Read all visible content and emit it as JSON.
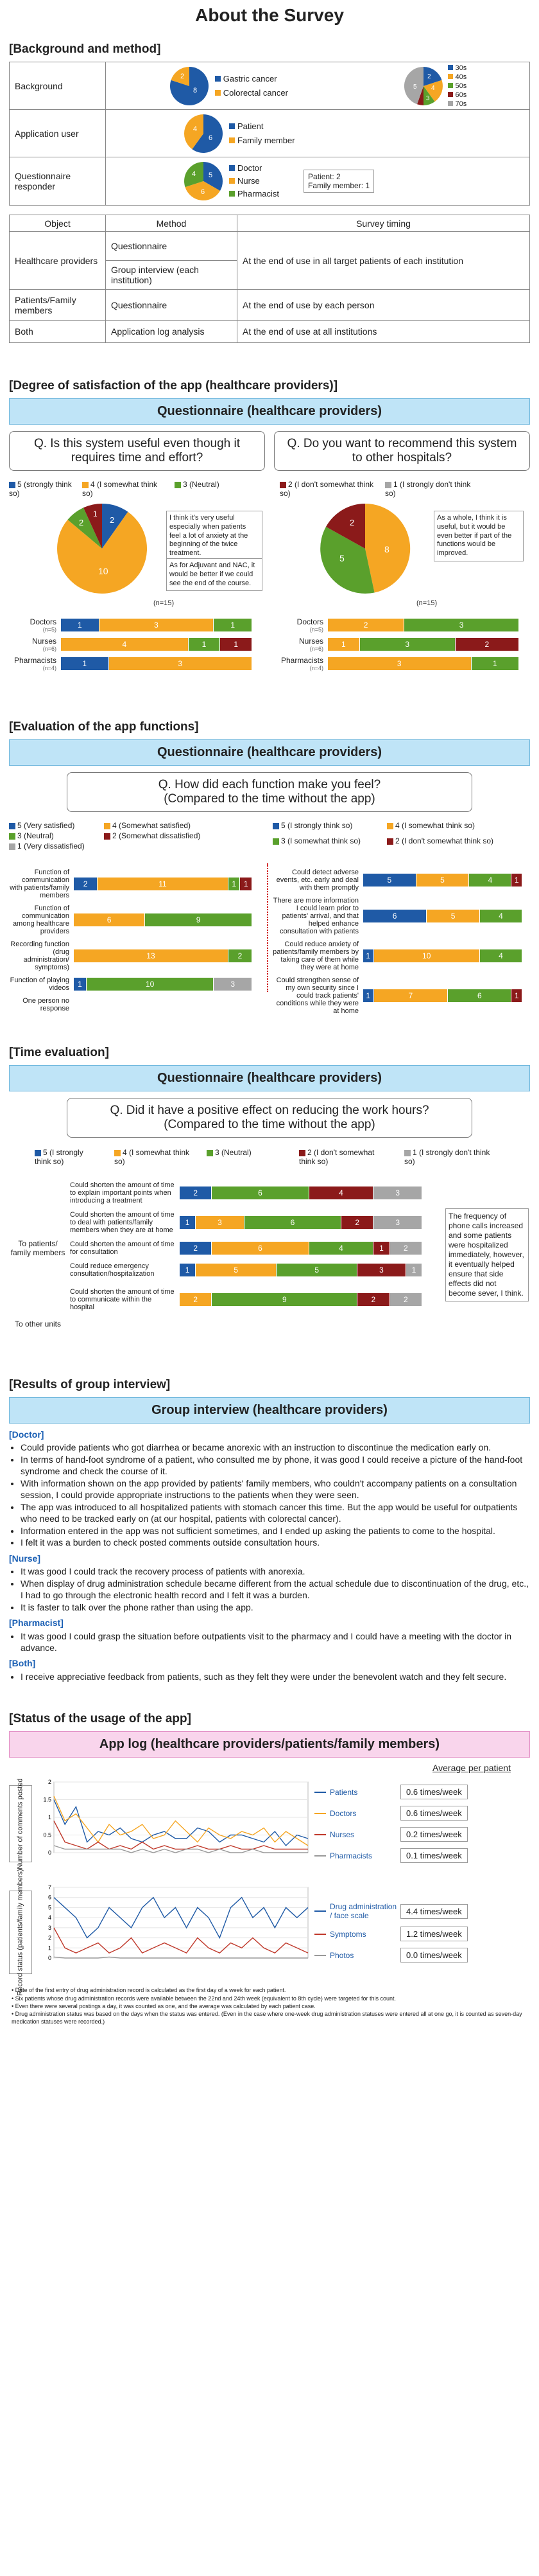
{
  "title": "About the Survey",
  "s1": {
    "heading": "[Background and method]",
    "bg_label": "Background",
    "bg_pie1": [
      "Gastric cancer",
      "Colorectal cancer"
    ],
    "bg_pie1_vals": [
      8,
      2
    ],
    "bg_pie2_legend": [
      "30s",
      "40s",
      "50s",
      "60s",
      "70s"
    ],
    "bg_pie2_vals": [
      2,
      4,
      5,
      1,
      3
    ],
    "user_label": "Application user",
    "user_legend": [
      "Patient",
      "Family member"
    ],
    "user_vals": [
      6,
      4
    ],
    "resp_label": "Questionnaire responder",
    "resp_legend": [
      "Doctor",
      "Nurse",
      "Pharmacist"
    ],
    "resp_vals": [
      5,
      6,
      4
    ],
    "resp_box": "Patient: 2\nFamily member: 1",
    "tbl_head": [
      "Object",
      "Method",
      "Survey timing"
    ],
    "r1_obj": "Healthcare providers",
    "r1_m1": "Questionnaire",
    "r1_m2": "Group interview (each institution)",
    "r1_t": "At the end of use in all target patients of each institution",
    "r2_obj": "Patients/Family members",
    "r2_m": "Questionnaire",
    "r2_t": "At the end of use by each person",
    "r3_obj": "Both",
    "r3_m": "Application log analysis",
    "r3_t": "At the end of use at all institutions"
  },
  "s2": {
    "heading": "[Degree of satisfaction of the app (healthcare providers)]",
    "banner": "Questionnaire (healthcare providers)",
    "q1": "Q. Is this system useful even though it requires time and effort?",
    "q2": "Q. Do you want to recommend this system to other hospitals?",
    "legend": [
      "5 (strongly think so)",
      "4 (I somewhat think so)",
      "3 (Neutral)",
      "2 (I don't somewhat think so)",
      "1 (I strongly don't think so)"
    ],
    "pie1": [
      2,
      10,
      2,
      1
    ],
    "pie2": [
      8,
      5,
      2
    ],
    "n": "(n=15)",
    "note1": "I think it's very useful especially when patients feel a lot of anxiety at the beginning of the twice treatment.",
    "note2": "As for Adjuvant and NAC, it would be better if we could see the end of the course.",
    "note3": "As a whole, I think it is useful, but it would be even better if part of the functions would be improved.",
    "rows": [
      {
        "l": "Doctors",
        "n": "(n=5)"
      },
      {
        "l": "Nurses",
        "n": "(n=6)"
      },
      {
        "l": "Pharmacists",
        "n": "(n=4)"
      }
    ],
    "b1": [
      [
        1,
        3,
        1
      ],
      [
        4,
        1,
        1
      ],
      [
        1,
        3
      ]
    ],
    "b2": [
      [
        2,
        3
      ],
      [
        1,
        3,
        2
      ],
      [
        3,
        1
      ]
    ]
  },
  "s3": {
    "heading": "[Evaluation of the app functions]",
    "banner": "Questionnaire (healthcare providers)",
    "q": "Q. How did each function make you feel?\n(Compared to the time without the app)",
    "legA": [
      "5 (Very satisfied)",
      "4 (Somewhat satisfied)",
      "3 (Neutral)",
      "2 (Somewhat dissatisfied)",
      "1 (Very dissatisfied)"
    ],
    "legB": [
      "5 (I strongly think so)",
      "4 (I somewhat think so)",
      "3 (I somewhat think so)",
      "2 (I don't somewhat think so)",
      "1 (I strongly don't think so)"
    ],
    "left": [
      {
        "l": "Function of communication with patients/family members",
        "v": [
          2,
          11,
          1,
          1
        ]
      },
      {
        "l": "Function of communication among healthcare providers",
        "v": [
          6,
          9
        ]
      },
      {
        "l": "Recording function (drug administration/ symptoms)",
        "v": [
          13,
          2
        ]
      },
      {
        "l": "Function of playing videos",
        "v": [
          1,
          10,
          3
        ]
      }
    ],
    "left_extra": "One person no response",
    "right": [
      {
        "l": "Could detect adverse events, etc. early and deal with them promptly",
        "v": [
          5,
          5,
          4,
          1
        ]
      },
      {
        "l": "There are more information I could learn prior to patients' arrival, and that helped enhance consultation with patients",
        "v": [
          6,
          5,
          4
        ]
      },
      {
        "l": "Could reduce anxiety of patients/family members by taking care of them while they were at home",
        "v": [
          1,
          10,
          4
        ]
      },
      {
        "l": "Could strengthen sense of my own security since I could track patients' conditions while they were at home",
        "v": [
          1,
          7,
          6,
          1
        ]
      }
    ]
  },
  "s4": {
    "heading": "[Time evaluation]",
    "banner": "Questionnaire (healthcare providers)",
    "q": "Q. Did it have a positive effect on reducing the work hours?\n(Compared to the time without the app)",
    "legend": [
      "5 (I strongly think so)",
      "4 (I somewhat think so)",
      "3 (Neutral)",
      "2 (I don't somewhat think so)",
      "1 (I strongly don't think so)"
    ],
    "grp1": "To patients/ family members",
    "grp2": "To other units",
    "rows": [
      {
        "l": "Could shorten the amount of time to explain important points when introducing a treatment",
        "v": [
          2,
          6,
          4,
          3
        ]
      },
      {
        "l": "Could shorten the amount of time to deal with patients/family members when they are at home",
        "v": [
          1,
          3,
          6,
          2,
          3
        ]
      },
      {
        "l": "Could shorten the amount of time for consultation",
        "v": [
          2,
          6,
          4,
          1,
          2
        ]
      },
      {
        "l": "Could reduce emergency consultation/hospitalization",
        "v": [
          1,
          5,
          5,
          3,
          1
        ]
      },
      {
        "l": "Could shorten the amount of time to communicate within the hospital",
        "v": [
          2,
          9,
          2,
          2
        ]
      }
    ],
    "note": "The frequency of phone calls increased and some patients were hospitalized immediately, however, it eventually helped ensure that side effects did not become sever, I think."
  },
  "s5": {
    "heading": "[Results of group interview]",
    "banner": "Group interview (healthcare providers)",
    "doctor": "[Doctor]",
    "d": [
      "Could provide patients who got diarrhea or became anorexic with an instruction to discontinue the medication early on.",
      "In terms of hand-foot syndrome of a patient, who consulted me by phone, it was good I could receive a picture of the hand-foot syndrome and check the course of it.",
      "With information shown on the app provided by patients' family members, who couldn't accompany patients on a consultation session, I could provide appropriate instructions to the patients when they were seen.",
      "The app was introduced to all hospitalized patients with stomach cancer this time. But the app would be useful for outpatients who need to be tracked early on (at our hospital, patients with colorectal cancer).",
      "Information entered in the app was not sufficient sometimes, and I ended up asking the patients to come to the hospital.",
      "I felt it was a burden to check posted comments outside consultation hours."
    ],
    "nurse": "[Nurse]",
    "n": [
      "It was good I could track the recovery process of patients with anorexia.",
      "When display of drug administration schedule became different from the actual schedule due to discontinuation of the drug, etc., I had to go through the electronic health record and I felt it was a burden.",
      "It is faster to talk over the phone rather than using the app."
    ],
    "pharm": "[Pharmacist]",
    "p": [
      "It was good I could grasp the situation before outpatients visit to the pharmacy and I could have a meeting with the doctor in advance."
    ],
    "both": "[Both]",
    "b": [
      "I receive appreciative feedback from patients, such as they felt they were under the benevolent watch and they felt secure."
    ]
  },
  "s6": {
    "heading": "[Status of the usage of the app]",
    "banner": "App log (healthcare providers/patients/family members)",
    "avg_title": "Average per patient",
    "y1": "Number of comments posted",
    "y2": "Record status (patients/family members)",
    "leg1": [
      {
        "l": "Patients",
        "v": "0.6 times/week"
      },
      {
        "l": "Doctors",
        "v": "0.6 times/week"
      },
      {
        "l": "Nurses",
        "v": "0.2 times/week"
      },
      {
        "l": "Pharmacists",
        "v": "0.1 times/week"
      }
    ],
    "leg2": [
      {
        "l": "Drug administration / face scale",
        "v": "4.4 times/week"
      },
      {
        "l": "Symptoms",
        "v": "1.2 times/week"
      },
      {
        "l": "Photos",
        "v": "0.0 times/week"
      }
    ],
    "foot": [
      "• Date of the first entry of drug administration record is calculated as the first day of a week for each patient.",
      "• Six patients whose drug administration records were available between the 22nd and 24th week (equivalent to 8th cycle) were targeted for this count.",
      "• Even there were several postings a day, it was counted as one, and the average was calculated by each patient case.",
      "• Drug administration status was based on the days when the status was entered. (Even in the case where one-week drug administration statuses were entered all at one go, it is counted as seven-day medication statuses were recorded.)"
    ]
  },
  "colors": {
    "c5": "#1f5aa6",
    "c4": "#f5a623",
    "c3": "#5aa02c",
    "c2": "#8b1a1a",
    "c1": "#a6a6a6"
  }
}
